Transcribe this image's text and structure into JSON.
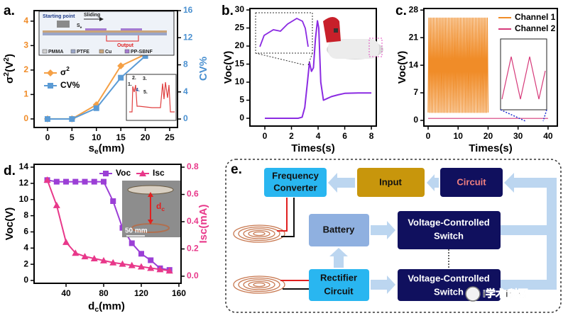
{
  "chart_data": [
    {
      "label": "a.",
      "type": "line",
      "xlabel": [
        {
          "text": "s"
        },
        {
          "text": "e",
          "script": "sub"
        },
        {
          "text": "(mm)"
        }
      ],
      "ylabel": [
        {
          "text": "σ"
        },
        {
          "text": "2",
          "script": "super"
        },
        {
          "text": "(V"
        },
        {
          "text": "2",
          "script": "super"
        },
        {
          "text": ")"
        }
      ],
      "y2label": "CV%",
      "x": [
        0,
        5,
        10,
        15,
        20,
        25
      ],
      "xlim": [
        -2.75,
        26.6
      ],
      "xticks": [
        0,
        5,
        10,
        15,
        20,
        25
      ],
      "ylim": [
        -0.35,
        4.43
      ],
      "yticks": [
        0,
        1,
        2,
        3,
        4
      ],
      "y2lim": [
        -1.25,
        16
      ],
      "y2ticks": [
        0,
        4,
        8,
        12,
        16
      ],
      "ycolor": "#f08c28",
      "y2color": "#4a90d0",
      "series": [
        {
          "name": [
            {
              "text": "σ"
            },
            {
              "text": "2",
              "script": "super"
            }
          ],
          "color": "#f5a045",
          "marker": "diamond",
          "values": [
            0,
            0,
            0.58,
            2.17,
            2.64,
            3.88
          ]
        },
        {
          "name": "CV%",
          "color": "#5b9bd5",
          "marker": "square",
          "axis": "y2",
          "values": [
            0,
            0,
            1.6,
            6.1,
            9.3,
            14.6
          ]
        }
      ],
      "inset_labels": [
        "Starting point",
        "Sliding",
        "Output"
      ],
      "inset_se": [
        {
          "text": "S"
        },
        {
          "text": "e",
          "script": "sub"
        }
      ],
      "materials": [
        "PMMA",
        "PTFE",
        "Cu",
        "PP-SBNF"
      ],
      "inset2_labels": [
        "1.",
        "2.",
        "3.",
        "4.",
        "5."
      ]
    },
    {
      "label": "b.",
      "type": "line",
      "xlabel": "Times(s)",
      "ylabel": "Voc(V)",
      "xlim": [
        -1.12,
        8.37
      ],
      "xticks": [
        0,
        2,
        4,
        6,
        8
      ],
      "ylim": [
        -2.16,
        30.4
      ],
      "yticks": [
        0,
        5,
        10,
        15,
        20,
        25,
        30
      ],
      "series": [
        {
          "color": "#8b2be2",
          "x": [
            0,
            0.5,
            1,
            1.5,
            2,
            2.5,
            2.8,
            3.0,
            3.2,
            3.35,
            3.5,
            3.65,
            3.8,
            3.95,
            4.05,
            4.2,
            4.4,
            4.7,
            5,
            5.5,
            6,
            7,
            8
          ],
          "values": [
            0,
            0,
            0,
            0,
            0,
            0,
            0.3,
            3,
            10,
            15.5,
            13,
            14,
            22,
            27,
            25,
            10,
            5,
            5.5,
            6,
            6.5,
            6.9,
            7,
            7
          ]
        }
      ]
    },
    {
      "label": "c.",
      "type": "line",
      "xlabel": "Times(s)",
      "ylabel": "Voc(V)",
      "xlim": [
        -1.42,
        43.1
      ],
      "xticks": [
        0,
        10,
        20,
        30,
        40
      ],
      "ylim": [
        -1.44,
        28.4
      ],
      "yticks": [
        0,
        7,
        14,
        21,
        28
      ],
      "series": [
        {
          "name": "Channel 1",
          "color": "#f08c28",
          "x": [
            0,
            0.25,
            0.5,
            0.75,
            1,
            1.25,
            1.5,
            1.75,
            2,
            2.25,
            2.5,
            2.75,
            3,
            3.25,
            3.5,
            3.75,
            4,
            4.25,
            4.5,
            4.75,
            5,
            5.25,
            5.5,
            5.75,
            6,
            6.25,
            6.5,
            6.75,
            7,
            7.25,
            7.5,
            7.75,
            8,
            8.25,
            8.5,
            8.75,
            9,
            9.25,
            9.5,
            9.75,
            10,
            10.25,
            10.5,
            10.75,
            11,
            11.25,
            11.5,
            11.75,
            12,
            12.25,
            12.5,
            12.75,
            13,
            13.25,
            13.5,
            13.75,
            14,
            14.25,
            14.5,
            14.75,
            15,
            15.25,
            15.5,
            15.75,
            16,
            16.25,
            16.5,
            16.75,
            17,
            17.25,
            17.5,
            17.75,
            18,
            18.25,
            18.5,
            18.75,
            19,
            19.25,
            19.5,
            19.75,
            20
          ],
          "values": [
            2,
            26,
            2,
            26,
            2,
            26,
            2,
            26,
            2,
            26,
            2,
            26,
            2,
            26,
            2,
            26,
            2,
            26,
            2,
            26,
            2,
            26,
            2,
            26,
            2,
            26,
            2,
            26,
            2,
            26,
            2,
            26,
            2,
            26,
            2,
            26,
            2,
            26,
            2,
            26,
            2,
            26,
            2,
            26,
            2,
            26,
            2,
            26,
            2,
            26,
            2,
            26,
            2,
            26,
            2,
            26,
            2,
            26,
            2,
            26,
            2,
            26,
            2,
            26,
            2,
            26,
            2,
            26,
            2,
            26,
            2,
            26,
            2,
            26,
            2,
            26,
            2,
            26,
            2,
            26,
            2
          ]
        },
        {
          "name": "Channel 2",
          "color": "#d63a7a",
          "x": [
            0,
            10,
            20,
            25,
            30,
            35,
            40
          ],
          "values": [
            0.5,
            0.5,
            0.5,
            0.5,
            0.5,
            0.5,
            0.5
          ]
        }
      ]
    },
    {
      "label": "d.",
      "type": "line",
      "xlabel": [
        {
          "text": "d"
        },
        {
          "text": "c",
          "script": "sub"
        },
        {
          "text": "(mm)"
        }
      ],
      "ylabel": "Voc(V)",
      "y2label": "Isc(mA)",
      "x": [
        20,
        30,
        40,
        50,
        60,
        70,
        80,
        90,
        100,
        110,
        120,
        130,
        140,
        150
      ],
      "xlim": [
        6,
        162.3
      ],
      "xticks": [
        40,
        80,
        120,
        160
      ],
      "ylim": [
        -0.35,
        14.35
      ],
      "yticks": [
        0,
        2,
        4,
        6,
        8,
        10,
        12,
        14
      ],
      "y2lim": [
        -0.052,
        0.821
      ],
      "y2ticks": [
        {
          "value": 0,
          "label": "0.0"
        },
        {
          "value": 0.2,
          "label": "0.2"
        },
        {
          "value": 0.4,
          "label": "0.4"
        },
        {
          "value": 0.6,
          "label": "0.6"
        },
        {
          "value": 0.8,
          "label": "0.8"
        }
      ],
      "y2color": "#e8388a",
      "series": [
        {
          "name": "Voc",
          "color": "#9b3fd6",
          "marker": "square",
          "values": [
            12.4,
            12.2,
            12.2,
            12.2,
            12.2,
            12.2,
            12.2,
            9.8,
            6.5,
            4.6,
            3.3,
            2.5,
            1.5,
            1.3
          ]
        },
        {
          "name": "Isc",
          "color": "#e8388a",
          "marker": "triangle",
          "axis": "y2",
          "values": [
            0.707,
            0.52,
            0.25,
            0.17,
            0.145,
            0.13,
            0.115,
            0.1,
            0.09,
            0.08,
            0.07,
            0.06,
            0.05,
            0.04
          ]
        }
      ],
      "inset_dc": [
        {
          "text": "d"
        },
        {
          "text": "c",
          "script": "sub"
        }
      ],
      "inset_scale": "50 mm"
    }
  ],
  "diagram": {
    "label": "e.",
    "nodes": [
      {
        "lines": [
          "Frequency",
          "Converter"
        ]
      },
      {
        "lines": [
          "Input"
        ]
      },
      {
        "lines": [
          "Circuit"
        ]
      },
      {
        "lines": [
          "Battery"
        ]
      },
      {
        "lines": [
          "Voltage-Controlled",
          "Switch"
        ]
      },
      {
        "lines": [
          "Rectifier",
          "Circuit"
        ]
      },
      {
        "lines": [
          "Voltage-Controlled",
          "Switch"
        ]
      }
    ]
  },
  "watermark": "i学术i科研"
}
